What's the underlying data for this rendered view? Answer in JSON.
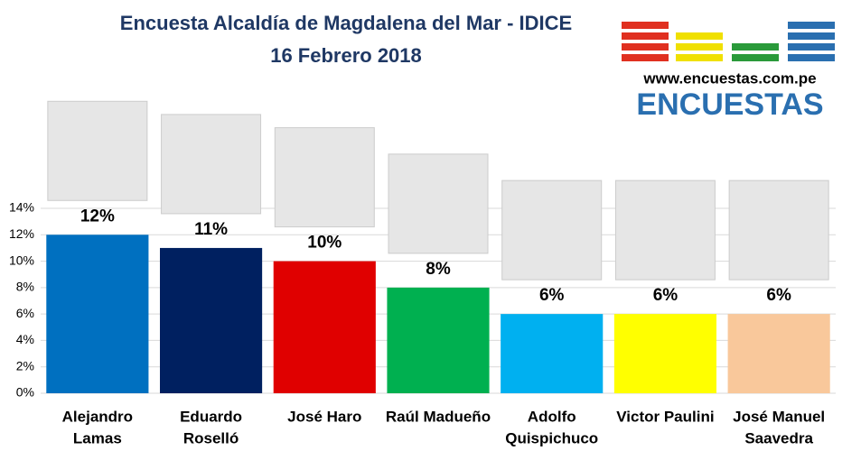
{
  "chart_data": {
    "type": "bar",
    "title": "Encuesta Alcaldía de Magdalena del Mar - IDICE",
    "subtitle": "16 Febrero 2018",
    "categories": [
      [
        "Alejandro",
        "Lamas"
      ],
      [
        "Eduardo",
        "Roselló"
      ],
      [
        "José Haro"
      ],
      [
        "Raúl Madueño"
      ],
      [
        "Adolfo",
        "Quispichuco"
      ],
      [
        "Victor Paulini"
      ],
      [
        "José Manuel",
        "Saavedra"
      ]
    ],
    "values": [
      12,
      11,
      10,
      8,
      6,
      6,
      6
    ],
    "value_labels": [
      "12%",
      "11%",
      "10%",
      "8%",
      "6%",
      "6%",
      "6%"
    ],
    "colors": [
      "#0070c0",
      "#002060",
      "#e00000",
      "#00b050",
      "#00b0f0",
      "#ffff00",
      "#f9c89b"
    ],
    "ylim": [
      0,
      14
    ],
    "yticks": [
      {
        "value": 0,
        "label": "0%"
      },
      {
        "value": 2,
        "label": "2%"
      },
      {
        "value": 4,
        "label": "4%"
      },
      {
        "value": 6,
        "label": "6%"
      },
      {
        "value": 8,
        "label": "8%"
      },
      {
        "value": 10,
        "label": "10%"
      },
      {
        "value": 12,
        "label": "12%"
      },
      {
        "value": 14,
        "label": "14%"
      }
    ],
    "grid": true
  },
  "logo": {
    "url": "www.encuestas.com.pe",
    "name": "ENCUESTAS"
  }
}
